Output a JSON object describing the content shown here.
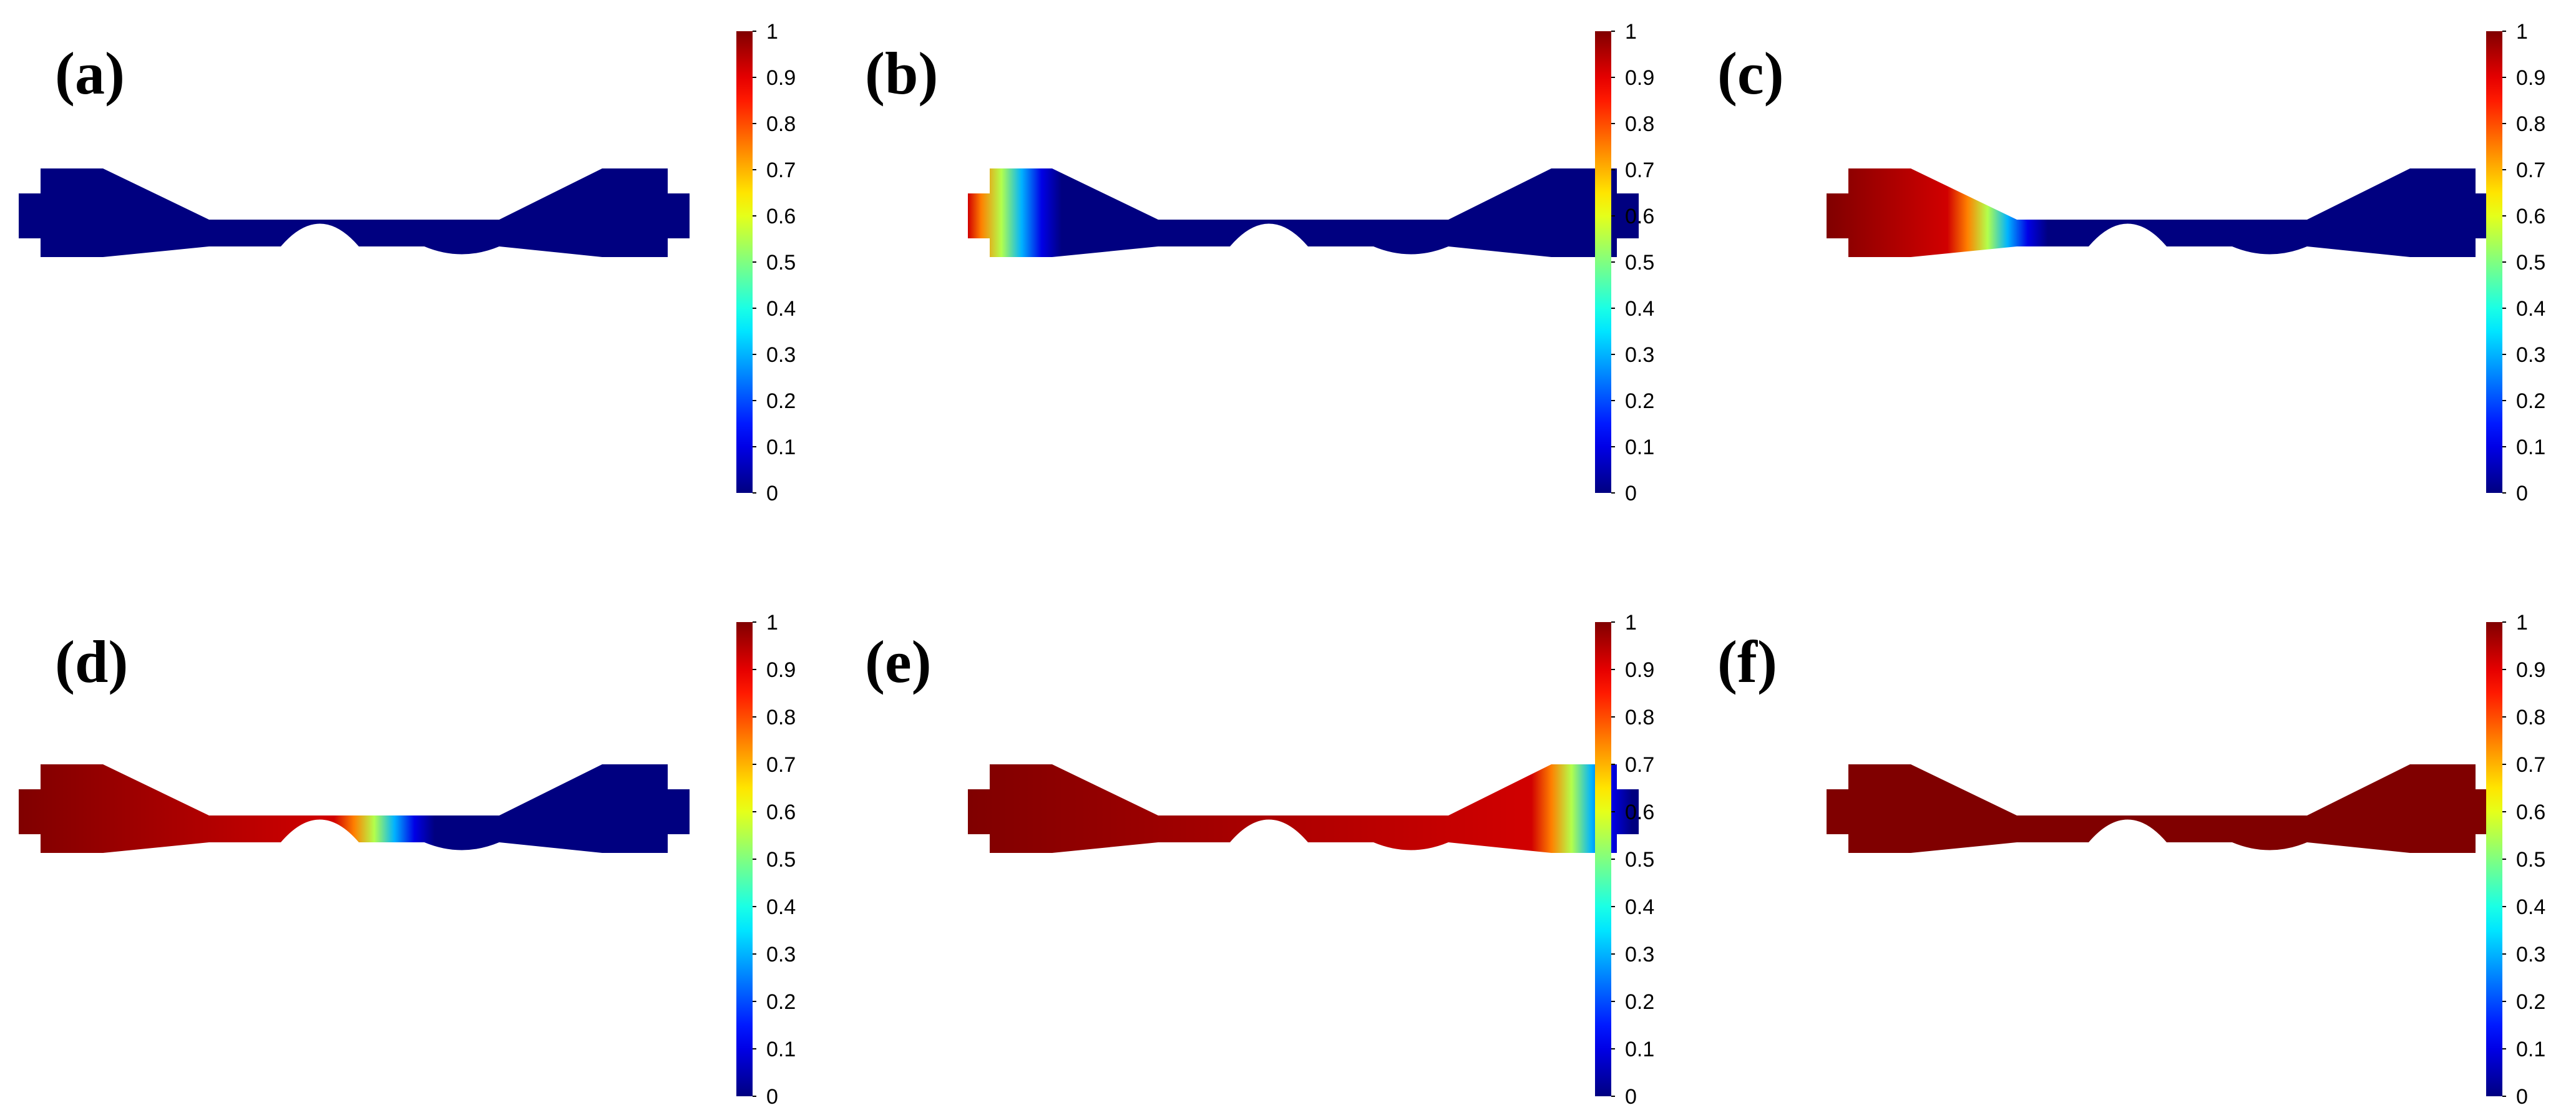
{
  "figure": {
    "panels": [
      {
        "id": "a",
        "label": "(a)",
        "fill_fraction": 0.0
      },
      {
        "id": "b",
        "label": "(b)",
        "fill_fraction": 0.08
      },
      {
        "id": "c",
        "label": "(c)",
        "fill_fraction": 0.27
      },
      {
        "id": "d",
        "label": "(d)",
        "fill_fraction": 0.56
      },
      {
        "id": "e",
        "label": "(e)",
        "fill_fraction": 0.93
      },
      {
        "id": "f",
        "label": "(f)",
        "fill_fraction": 1.0
      }
    ],
    "colorbar": {
      "ticks": [
        "0",
        "0.1",
        "0.2",
        "0.3",
        "0.4",
        "0.5",
        "0.6",
        "0.7",
        "0.8",
        "0.9",
        "1"
      ],
      "min": 0,
      "max": 1,
      "colormap": "jet"
    },
    "colors": {
      "low": "#00007f",
      "high": "#7f0000"
    }
  }
}
